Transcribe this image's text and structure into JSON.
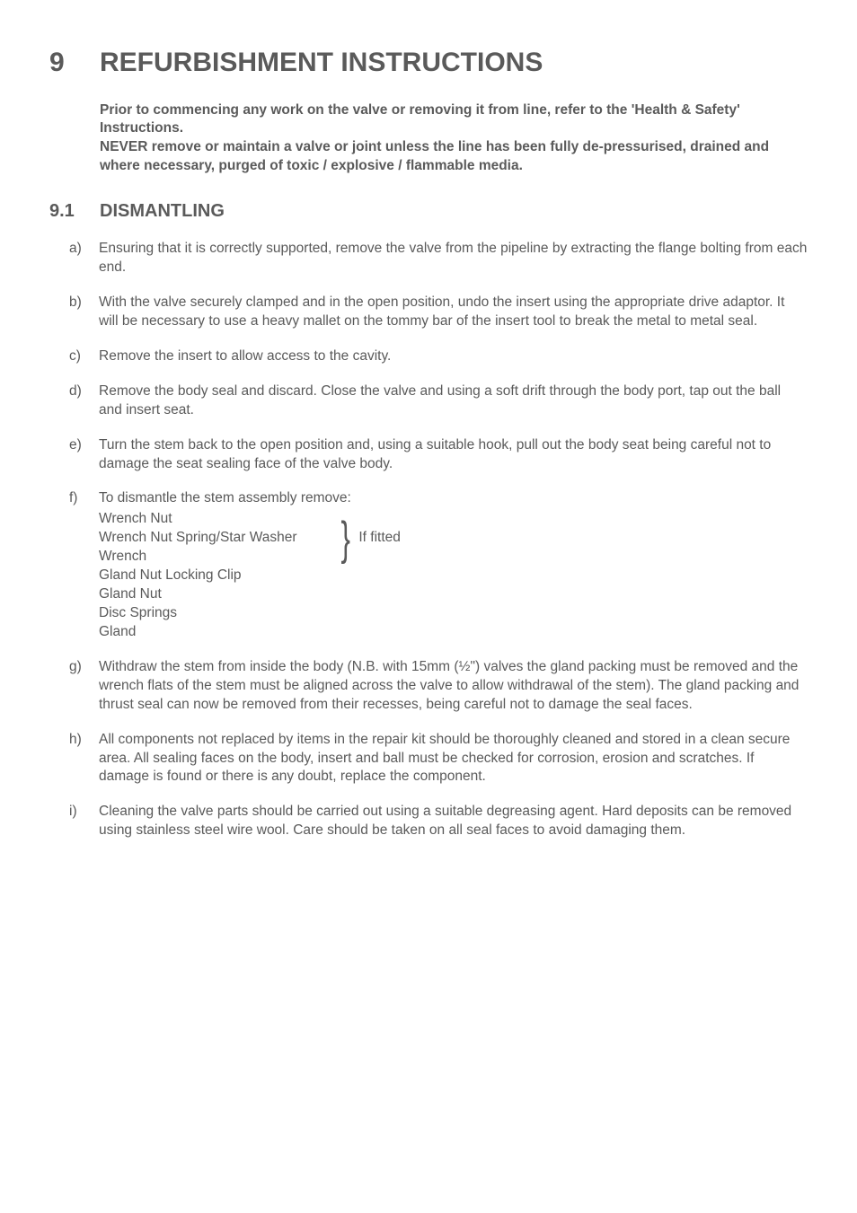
{
  "title": {
    "number": "9",
    "text": "REFURBISHMENT INSTRUCTIONS"
  },
  "intro": {
    "p1": "Prior to commencing any work on the valve or removing it from line, refer to the 'Health & Safety' Instructions.",
    "p2": "NEVER remove or maintain a valve or joint unless the line has been fully de-pressurised, drained and where necessary, purged of toxic / explosive / flammable media."
  },
  "subheading": {
    "number": "9.1",
    "text": "DISMANTLING"
  },
  "items": {
    "a": {
      "letter": "a)",
      "text": "Ensuring that it is correctly supported, remove the valve from the pipeline by extracting the flange bolting from each end."
    },
    "b": {
      "letter": "b)",
      "text": "With the valve securely clamped and in the open position, undo the insert using the appropriate drive adaptor. It will be necessary to use a heavy mallet on the tommy bar of the insert tool to break the metal to metal seal."
    },
    "c": {
      "letter": "c)",
      "text": "Remove the insert to allow access to the cavity."
    },
    "d": {
      "letter": "d)",
      "text": "Remove the body seal and discard. Close the valve and using a soft drift through the body port, tap out the ball and insert seat."
    },
    "e": {
      "letter": "e)",
      "text": "Turn the stem back to the open position and, using a suitable hook, pull out the body seat being careful not to damage the seat sealing face of the valve body."
    },
    "f": {
      "letter": "f)",
      "lead": "To dismantle the stem assembly remove:",
      "group1": {
        "l1": "Wrench Nut",
        "l2": "Wrench Nut Spring/Star Washer",
        "l3": "Wrench"
      },
      "brace_label": "If fitted",
      "group2": {
        "l1": "Gland Nut Locking Clip",
        "l2": "Gland Nut",
        "l3": "Disc Springs",
        "l4": "Gland"
      }
    },
    "g": {
      "letter": "g)",
      "text": "Withdraw the stem from inside the body (N.B. with 15mm (½\") valves the gland packing must be removed and the wrench flats of the stem must be aligned across the valve to allow withdrawal of the stem). The gland packing and thrust seal can now be removed from their recesses, being careful not to damage the seal faces."
    },
    "h": {
      "letter": "h)",
      "text": "All components not replaced by items in the repair kit should be thoroughly cleaned and stored in a clean secure area.  All sealing faces on the body, insert and ball must be checked for corrosion, erosion and scratches. If damage is found or there is any doubt, replace the component."
    },
    "i": {
      "letter": "i)",
      "text": "Cleaning the valve parts should be carried out using a suitable degreasing agent. Hard deposits can be removed using stainless steel wire wool. Care should be taken on all seal faces to avoid damaging them."
    }
  }
}
